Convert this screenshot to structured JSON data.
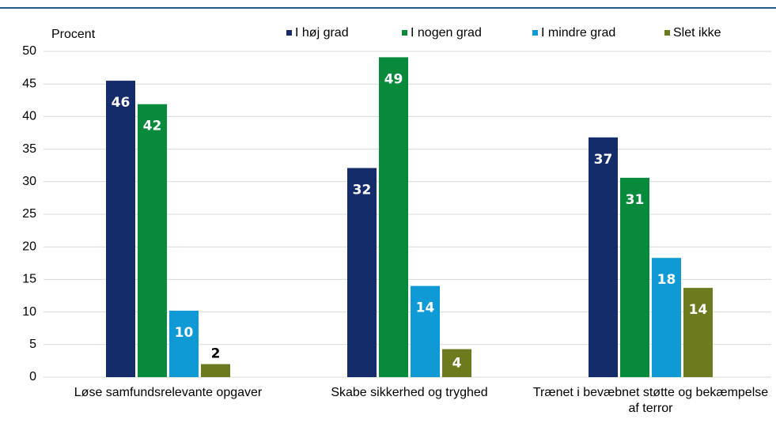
{
  "chart_data": {
    "type": "bar",
    "y_axis_label": "Procent",
    "categories": [
      "Løse samfundsrelevante opgaver",
      "Skabe sikkerhed og tryghed",
      "Trænet i bevæbnet støtte og bekæmpelse af terror"
    ],
    "series": [
      {
        "name": "I høj grad",
        "color": "#142c6a",
        "values": [
          45.5,
          32.1,
          36.8
        ],
        "value_labels": [
          "46",
          "32",
          "37"
        ]
      },
      {
        "name": "I nogen grad",
        "color": "#078a3c",
        "values": [
          41.9,
          49.1,
          30.6
        ],
        "value_labels": [
          "42",
          "49",
          "31"
        ]
      },
      {
        "name": "I mindre grad",
        "color": "#0f9ad6",
        "values": [
          10.2,
          14.0,
          18.3
        ],
        "value_labels": [
          "10",
          "14",
          "18"
        ]
      },
      {
        "name": "Slet ikke",
        "color": "#6d7a1e",
        "values": [
          2.0,
          4.3,
          13.7
        ],
        "value_labels": [
          "2",
          "4",
          "14"
        ]
      }
    ],
    "ylim": [
      0,
      50
    ],
    "yticks": [
      0,
      5,
      10,
      15,
      20,
      25,
      30,
      35,
      40,
      45,
      50
    ],
    "grid": true,
    "legend": "top"
  }
}
